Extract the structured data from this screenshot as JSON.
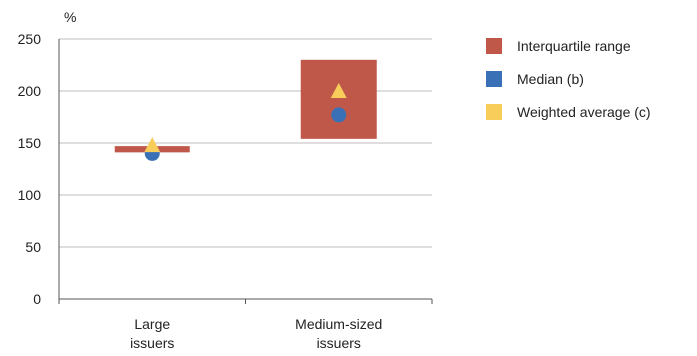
{
  "chart_data": {
    "type": "range-dot",
    "y_unit_label": "%",
    "ylim": [
      0,
      250
    ],
    "yticks": [
      0,
      50,
      100,
      150,
      200,
      250
    ],
    "grid": true,
    "legend_position": "right",
    "categories": [
      [
        "Large",
        "issuers"
      ],
      [
        "Medium-sized",
        "issuers"
      ]
    ],
    "series": [
      {
        "name": "Interquartile range",
        "marker": "square",
        "color": "#c0584a",
        "values": [
          [
            141,
            147
          ],
          [
            154,
            230
          ]
        ]
      },
      {
        "name": "Median (b)",
        "marker": "circle",
        "color": "#3a70b5",
        "values": [
          140,
          177
        ]
      },
      {
        "name": "Weighted average (c)",
        "marker": "triangle",
        "color": "#f9cd5a",
        "values": [
          148,
          200
        ]
      }
    ]
  }
}
